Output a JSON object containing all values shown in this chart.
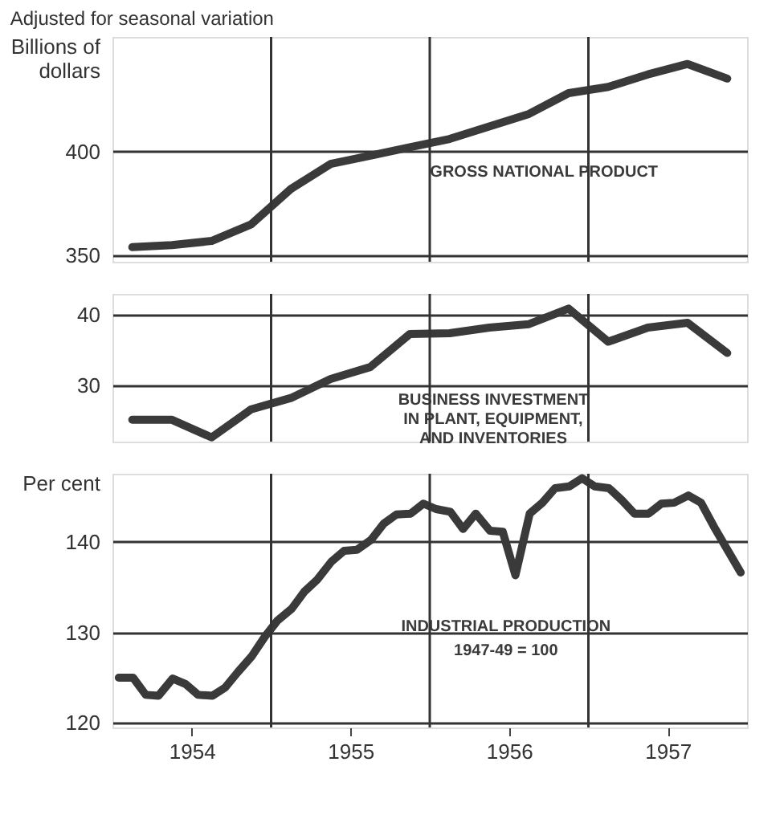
{
  "chart_data": [
    {
      "type": "line",
      "title": "Adjusted for seasonal variation",
      "ylabel": "Billions of dollars",
      "xlim": [
        1954,
        1958
      ],
      "ylim": [
        347,
        455
      ],
      "yticks": [
        350,
        400
      ],
      "grid": "y",
      "tick_labels": "y",
      "x": [
        1954.125,
        1954.375,
        1954.625,
        1954.875,
        1955.125,
        1955.375,
        1955.625,
        1955.875,
        1956.125,
        1956.375,
        1956.625,
        1956.875,
        1957.125,
        1957.375,
        1957.625,
        1957.875
      ],
      "series": [
        {
          "name": "GROSS NATIONAL PRODUCT",
          "color": "#3a3a3a",
          "values": [
            354,
            355,
            357,
            365,
            382,
            394,
            398,
            402,
            406,
            412,
            418,
            428,
            431,
            437,
            442,
            435
          ]
        }
      ],
      "ref_lines": [
        {
          "axis": "x",
          "value": 1955
        },
        {
          "axis": "x",
          "value": 1956
        },
        {
          "axis": "x",
          "value": 1957
        }
      ]
    },
    {
      "type": "line",
      "xlim": [
        1954,
        1958
      ],
      "ylim": [
        22,
        43
      ],
      "yticks": [
        30,
        40
      ],
      "grid": "y",
      "tick_labels": "y",
      "x": [
        1954.125,
        1954.375,
        1954.625,
        1954.875,
        1955.125,
        1955.375,
        1955.625,
        1955.875,
        1956.125,
        1956.375,
        1956.625,
        1956.875,
        1957.125,
        1957.375,
        1957.625,
        1957.875
      ],
      "series": [
        {
          "name": "BUSINESS INVESTMENT\nIN PLANT, EQUIPMENT,\nAND INVENTORIES",
          "color": "#3a3a3a",
          "values": [
            25.1,
            25.1,
            22.6,
            26.6,
            28.2,
            30.9,
            32.6,
            37.3,
            37.4,
            38.2,
            38.7,
            40.9,
            36.2,
            38.2,
            38.9,
            34.6
          ]
        }
      ],
      "ref_lines": [
        {
          "axis": "x",
          "value": 1955
        },
        {
          "axis": "x",
          "value": 1956
        },
        {
          "axis": "x",
          "value": 1957
        }
      ]
    },
    {
      "type": "line",
      "ylabel": "Per cent",
      "xlim": [
        1954,
        1958
      ],
      "ylim": [
        119.5,
        147.5
      ],
      "yticks": [
        120,
        130,
        140
      ],
      "grid": "y",
      "xticks": [
        {
          "value": 1954.5,
          "label": "1954"
        },
        {
          "value": 1955.5,
          "label": "1955"
        },
        {
          "value": 1956.5,
          "label": "1956"
        },
        {
          "value": 1957.5,
          "label": "1957"
        }
      ],
      "x": [
        1954.04,
        1954.13,
        1954.21,
        1954.29,
        1954.38,
        1954.46,
        1954.54,
        1954.63,
        1954.71,
        1954.79,
        1954.88,
        1954.96,
        1955.04,
        1955.13,
        1955.21,
        1955.29,
        1955.38,
        1955.46,
        1955.54,
        1955.63,
        1955.71,
        1955.79,
        1955.88,
        1955.96,
        1956.04,
        1956.13,
        1956.21,
        1956.29,
        1956.38,
        1956.46,
        1956.54,
        1956.63,
        1956.71,
        1956.79,
        1956.88,
        1956.96,
        1957.04,
        1957.13,
        1957.21,
        1957.29,
        1957.38,
        1957.46,
        1957.54,
        1957.63,
        1957.71,
        1957.79,
        1957.88,
        1957.96
      ],
      "series": [
        {
          "name": "INDUSTRIAL PRODUCTION",
          "color": "#3a3a3a",
          "values": [
            125.0,
            125.0,
            123.1,
            123.0,
            124.9,
            124.3,
            123.1,
            123.0,
            123.9,
            125.6,
            127.4,
            129.5,
            131.3,
            132.6,
            134.5,
            135.8,
            137.8,
            139.0,
            139.1,
            140.2,
            142.0,
            143.0,
            143.1,
            144.2,
            143.6,
            143.3,
            141.4,
            143.1,
            141.2,
            141.1,
            136.3,
            143.1,
            144.3,
            145.9,
            146.1,
            147.0,
            146.1,
            145.9,
            144.6,
            143.1,
            143.1,
            144.2,
            144.3,
            145.1,
            144.3,
            141.7,
            139.0,
            136.6
          ]
        }
      ],
      "annotations": [
        "1947-49 = 100"
      ],
      "ref_lines": [
        {
          "axis": "x",
          "value": 1955
        },
        {
          "axis": "x",
          "value": 1956
        },
        {
          "axis": "x",
          "value": 1957
        }
      ]
    }
  ]
}
